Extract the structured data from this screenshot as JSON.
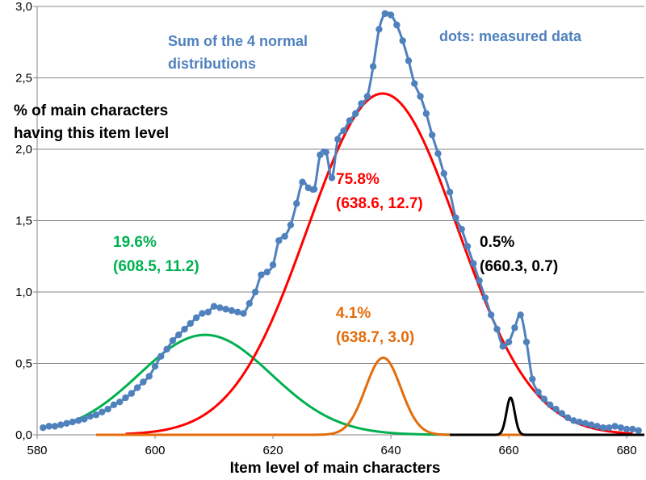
{
  "chart_data": {
    "type": "line",
    "title": "",
    "xlabel": "Item level of main characters",
    "ylabel_lines": [
      "% of main characters",
      "having this item level"
    ],
    "xlim": [
      580,
      683
    ],
    "ylim": [
      0,
      3.0
    ],
    "x_ticks": [
      580,
      600,
      620,
      640,
      660,
      680
    ],
    "x_tick_labels": [
      "580",
      "600",
      "620",
      "640",
      "660",
      "680"
    ],
    "y_ticks": [
      0,
      0.5,
      1.0,
      1.5,
      2.0,
      2.5,
      3.0
    ],
    "y_tick_labels": [
      "0,0",
      "0,5",
      "1,0",
      "1,5",
      "2,0",
      "2,5",
      "3,0"
    ],
    "grid": "horizontal",
    "colors": {
      "sum": "#4F81BD",
      "dots": "#4F81BD",
      "main": "#FF0000",
      "low": "#00B050",
      "mid": "#E46C0A",
      "high": "#000000"
    },
    "series": [
      {
        "key": "low",
        "mean": 608.5,
        "sd": 11.2,
        "peak": 0.7,
        "x_range": [
          585,
          650
        ]
      },
      {
        "key": "main",
        "mean": 638.6,
        "sd": 12.7,
        "peak": 2.39,
        "x_range": [
          595,
          681
        ]
      },
      {
        "key": "mid",
        "mean": 638.7,
        "sd": 3.0,
        "peak": 0.54,
        "x_range": [
          590,
          683
        ]
      },
      {
        "key": "high",
        "mean": 660.3,
        "sd": 0.7,
        "peak": 0.26,
        "x_range": [
          650,
          683
        ]
      }
    ],
    "measured": {
      "x": [
        581,
        582,
        583,
        584,
        585,
        586,
        587,
        588,
        589,
        590,
        591,
        592,
        593,
        594,
        595,
        596,
        597,
        598,
        599,
        600,
        601,
        602,
        603,
        604,
        605,
        606,
        607,
        608,
        609,
        610,
        611,
        612,
        613,
        614,
        615,
        616,
        617,
        618,
        619,
        620,
        621,
        622,
        623,
        624,
        625,
        626,
        627,
        628,
        629,
        630,
        631,
        632,
        633,
        634,
        635,
        636,
        637,
        638,
        639,
        640,
        641,
        642,
        643,
        644,
        645,
        646,
        647,
        648,
        649,
        650,
        651,
        652,
        653,
        654,
        655,
        656,
        657,
        658,
        659,
        660,
        661,
        662,
        663,
        664,
        665,
        666,
        667,
        668,
        669,
        670,
        671,
        672,
        673,
        674,
        675,
        676,
        677,
        678,
        679,
        680,
        681,
        682
      ],
      "y": [
        0.05,
        0.06,
        0.06,
        0.07,
        0.08,
        0.09,
        0.1,
        0.11,
        0.13,
        0.14,
        0.16,
        0.18,
        0.21,
        0.23,
        0.26,
        0.29,
        0.33,
        0.37,
        0.41,
        0.48,
        0.55,
        0.6,
        0.66,
        0.7,
        0.74,
        0.78,
        0.82,
        0.85,
        0.86,
        0.9,
        0.89,
        0.88,
        0.87,
        0.86,
        0.85,
        0.92,
        1.0,
        1.12,
        1.14,
        1.19,
        1.36,
        1.39,
        1.47,
        1.62,
        1.77,
        1.73,
        1.72,
        1.96,
        1.98,
        1.8,
        2.07,
        2.13,
        2.2,
        2.25,
        2.32,
        2.37,
        2.58,
        2.84,
        2.95,
        2.94,
        2.87,
        2.76,
        2.62,
        2.46,
        2.37,
        2.25,
        2.1,
        1.97,
        1.83,
        1.7,
        1.52,
        1.44,
        1.32,
        1.2,
        1.08,
        0.96,
        0.84,
        0.74,
        0.62,
        0.65,
        0.75,
        0.84,
        0.65,
        0.39,
        0.3,
        0.25,
        0.21,
        0.18,
        0.15,
        0.12,
        0.1,
        0.09,
        0.08,
        0.07,
        0.06,
        0.05,
        0.05,
        0.06,
        0.05,
        0.04,
        0.04,
        0.03
      ]
    },
    "annotations": {
      "sum_line1": "Sum of the 4 normal",
      "sum_line2": "distributions",
      "dots": "dots: measured data",
      "main_pct": "75.8%",
      "main_params": "(638.6, 12.7)",
      "low_pct": "19.6%",
      "low_params": "(608.5, 11.2)",
      "mid_pct": "4.1%",
      "mid_params": "(638.7, 3.0)",
      "high_pct": "0.5%",
      "high_params": "(660.3, 0.7)"
    }
  }
}
